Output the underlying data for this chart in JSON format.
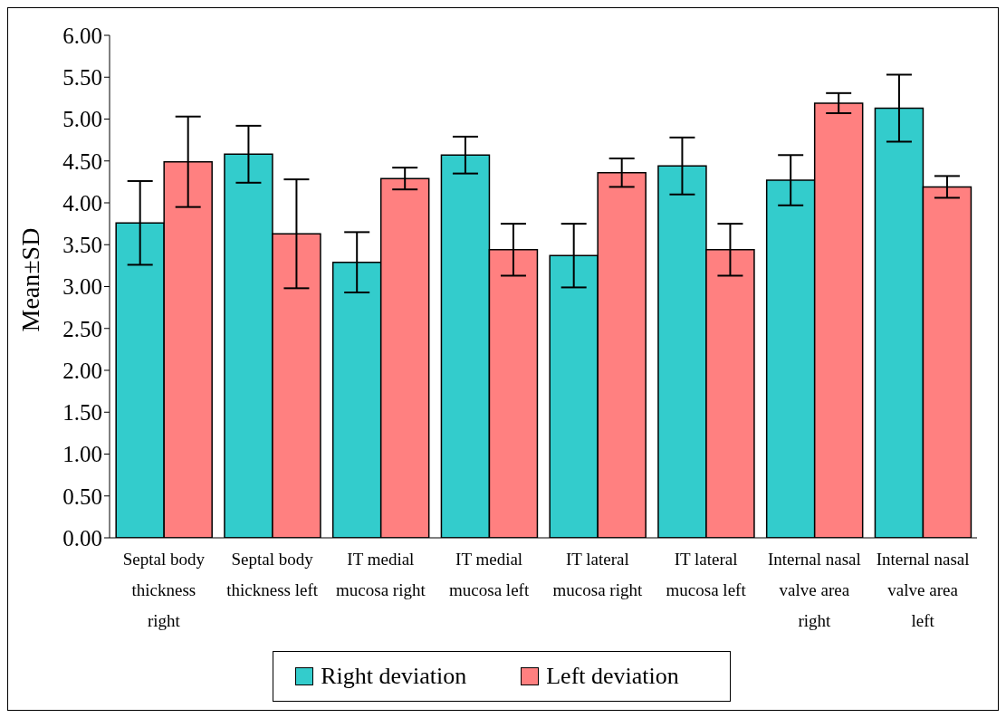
{
  "chart_data": {
    "type": "bar",
    "ylabel": "Mean±SD",
    "categories": [
      "Septal body thickness right",
      "Septal body thickness left",
      "IT medial mucosa right",
      "IT medial mucosa left",
      "IT lateral mucosa right",
      "IT lateral mucosa left",
      "Internal nasal valve area right",
      "Internal nasal valve area left"
    ],
    "series": [
      {
        "name": "Right deviation",
        "color": "#33cccc",
        "values": [
          3.76,
          4.58,
          3.29,
          4.57,
          3.37,
          4.44,
          4.27,
          5.13
        ],
        "errors": [
          0.5,
          0.34,
          0.36,
          0.22,
          0.38,
          0.34,
          0.3,
          0.4
        ]
      },
      {
        "name": "Left deviation",
        "color": "#ff8080",
        "values": [
          4.49,
          3.63,
          4.29,
          3.44,
          4.36,
          3.44,
          5.19,
          4.19
        ],
        "errors": [
          0.54,
          0.65,
          0.13,
          0.31,
          0.17,
          0.31,
          0.12,
          0.13
        ]
      }
    ],
    "ylim": [
      0,
      6
    ],
    "yticks": [
      {
        "value": 0,
        "label": "0.00"
      },
      {
        "value": 0.5,
        "label": "0.50"
      },
      {
        "value": 1,
        "label": "1.00"
      },
      {
        "value": 1.5,
        "label": "1.50"
      },
      {
        "value": 2,
        "label": "2.00"
      },
      {
        "value": 2.5,
        "label": "2.50"
      },
      {
        "value": 3,
        "label": "3.00"
      },
      {
        "value": 3.5,
        "label": "3.50"
      },
      {
        "value": 4,
        "label": "4.00"
      },
      {
        "value": 4.5,
        "label": "4.50"
      },
      {
        "value": 5,
        "label": "5.00"
      },
      {
        "value": 5.5,
        "label": "5.50"
      },
      {
        "value": 6,
        "label": "6.00"
      }
    ],
    "grid": false,
    "legend": "bottom"
  }
}
